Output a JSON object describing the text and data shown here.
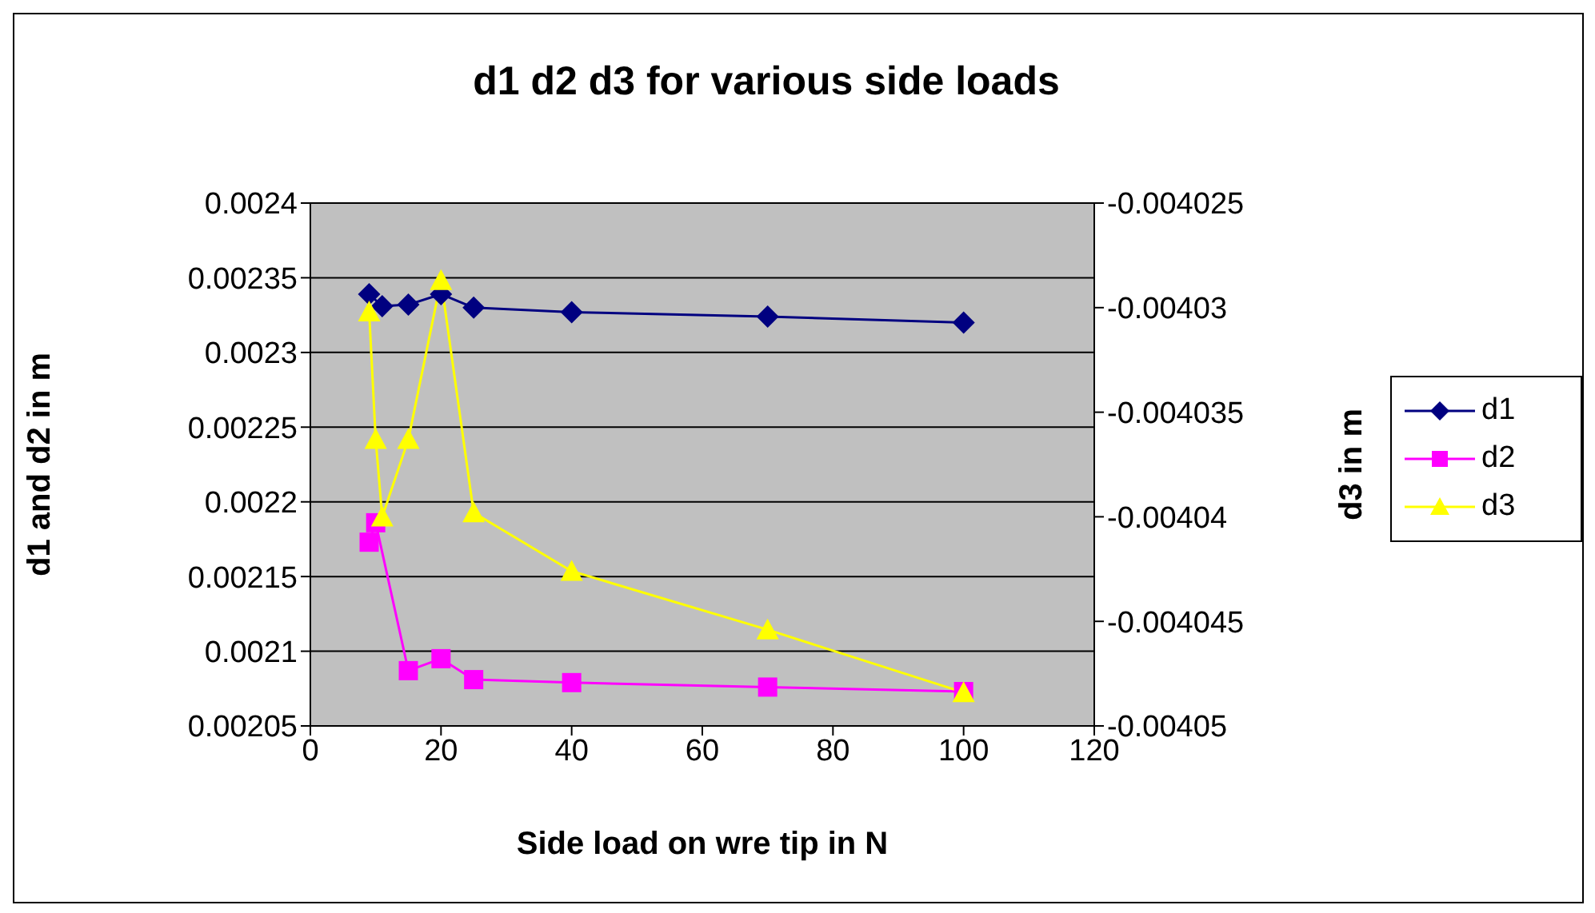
{
  "chart_data": {
    "type": "line",
    "title": "d1 d2 d3 for various side loads",
    "xlabel": "Side load on wre tip in N",
    "ylabel": "d1 and d2 in m",
    "y2label": "d3 in m",
    "x": [
      9,
      10,
      11,
      15,
      20,
      25,
      40,
      70,
      100
    ],
    "series": [
      {
        "name": "d1",
        "color": "#000080",
        "marker": "diamond",
        "x": [
          9,
          11,
          15,
          20,
          25,
          40,
          70,
          100
        ],
        "values": [
          0.002339,
          0.002331,
          0.002332,
          0.002339,
          0.00233,
          0.002327,
          0.002324,
          0.00232
        ]
      },
      {
        "name": "d2",
        "color": "#ff00ff",
        "marker": "square",
        "x": [
          9,
          10,
          15,
          20,
          25,
          40,
          70,
          100
        ],
        "values": [
          0.002173,
          0.002186,
          0.002087,
          0.002095,
          0.002081,
          0.002079,
          0.002076,
          0.002073
        ]
      },
      {
        "name": "d3",
        "color": "#ffff00",
        "marker": "triangle",
        "axis": "y2",
        "values": [
          -0.0040302,
          -0.0040363,
          -0.00404,
          -0.0040363,
          -0.0040287,
          -0.0040398,
          -0.0040426,
          -0.0040454,
          -0.0040484
        ]
      }
    ],
    "xlim": [
      0,
      120
    ],
    "xticks": [
      0,
      20,
      40,
      60,
      80,
      100,
      120
    ],
    "ylim": [
      0.00205,
      0.0024
    ],
    "yticks": [
      0.00205,
      0.0021,
      0.00215,
      0.0022,
      0.00225,
      0.0023,
      0.00235,
      0.0024
    ],
    "y2lim": [
      -0.00405,
      -0.004025
    ],
    "y2ticks": [
      -0.00405,
      -0.004045,
      -0.00404,
      -0.004035,
      -0.00403,
      -0.004025
    ],
    "grid": "y",
    "legend": "right",
    "line_style": "solid"
  }
}
